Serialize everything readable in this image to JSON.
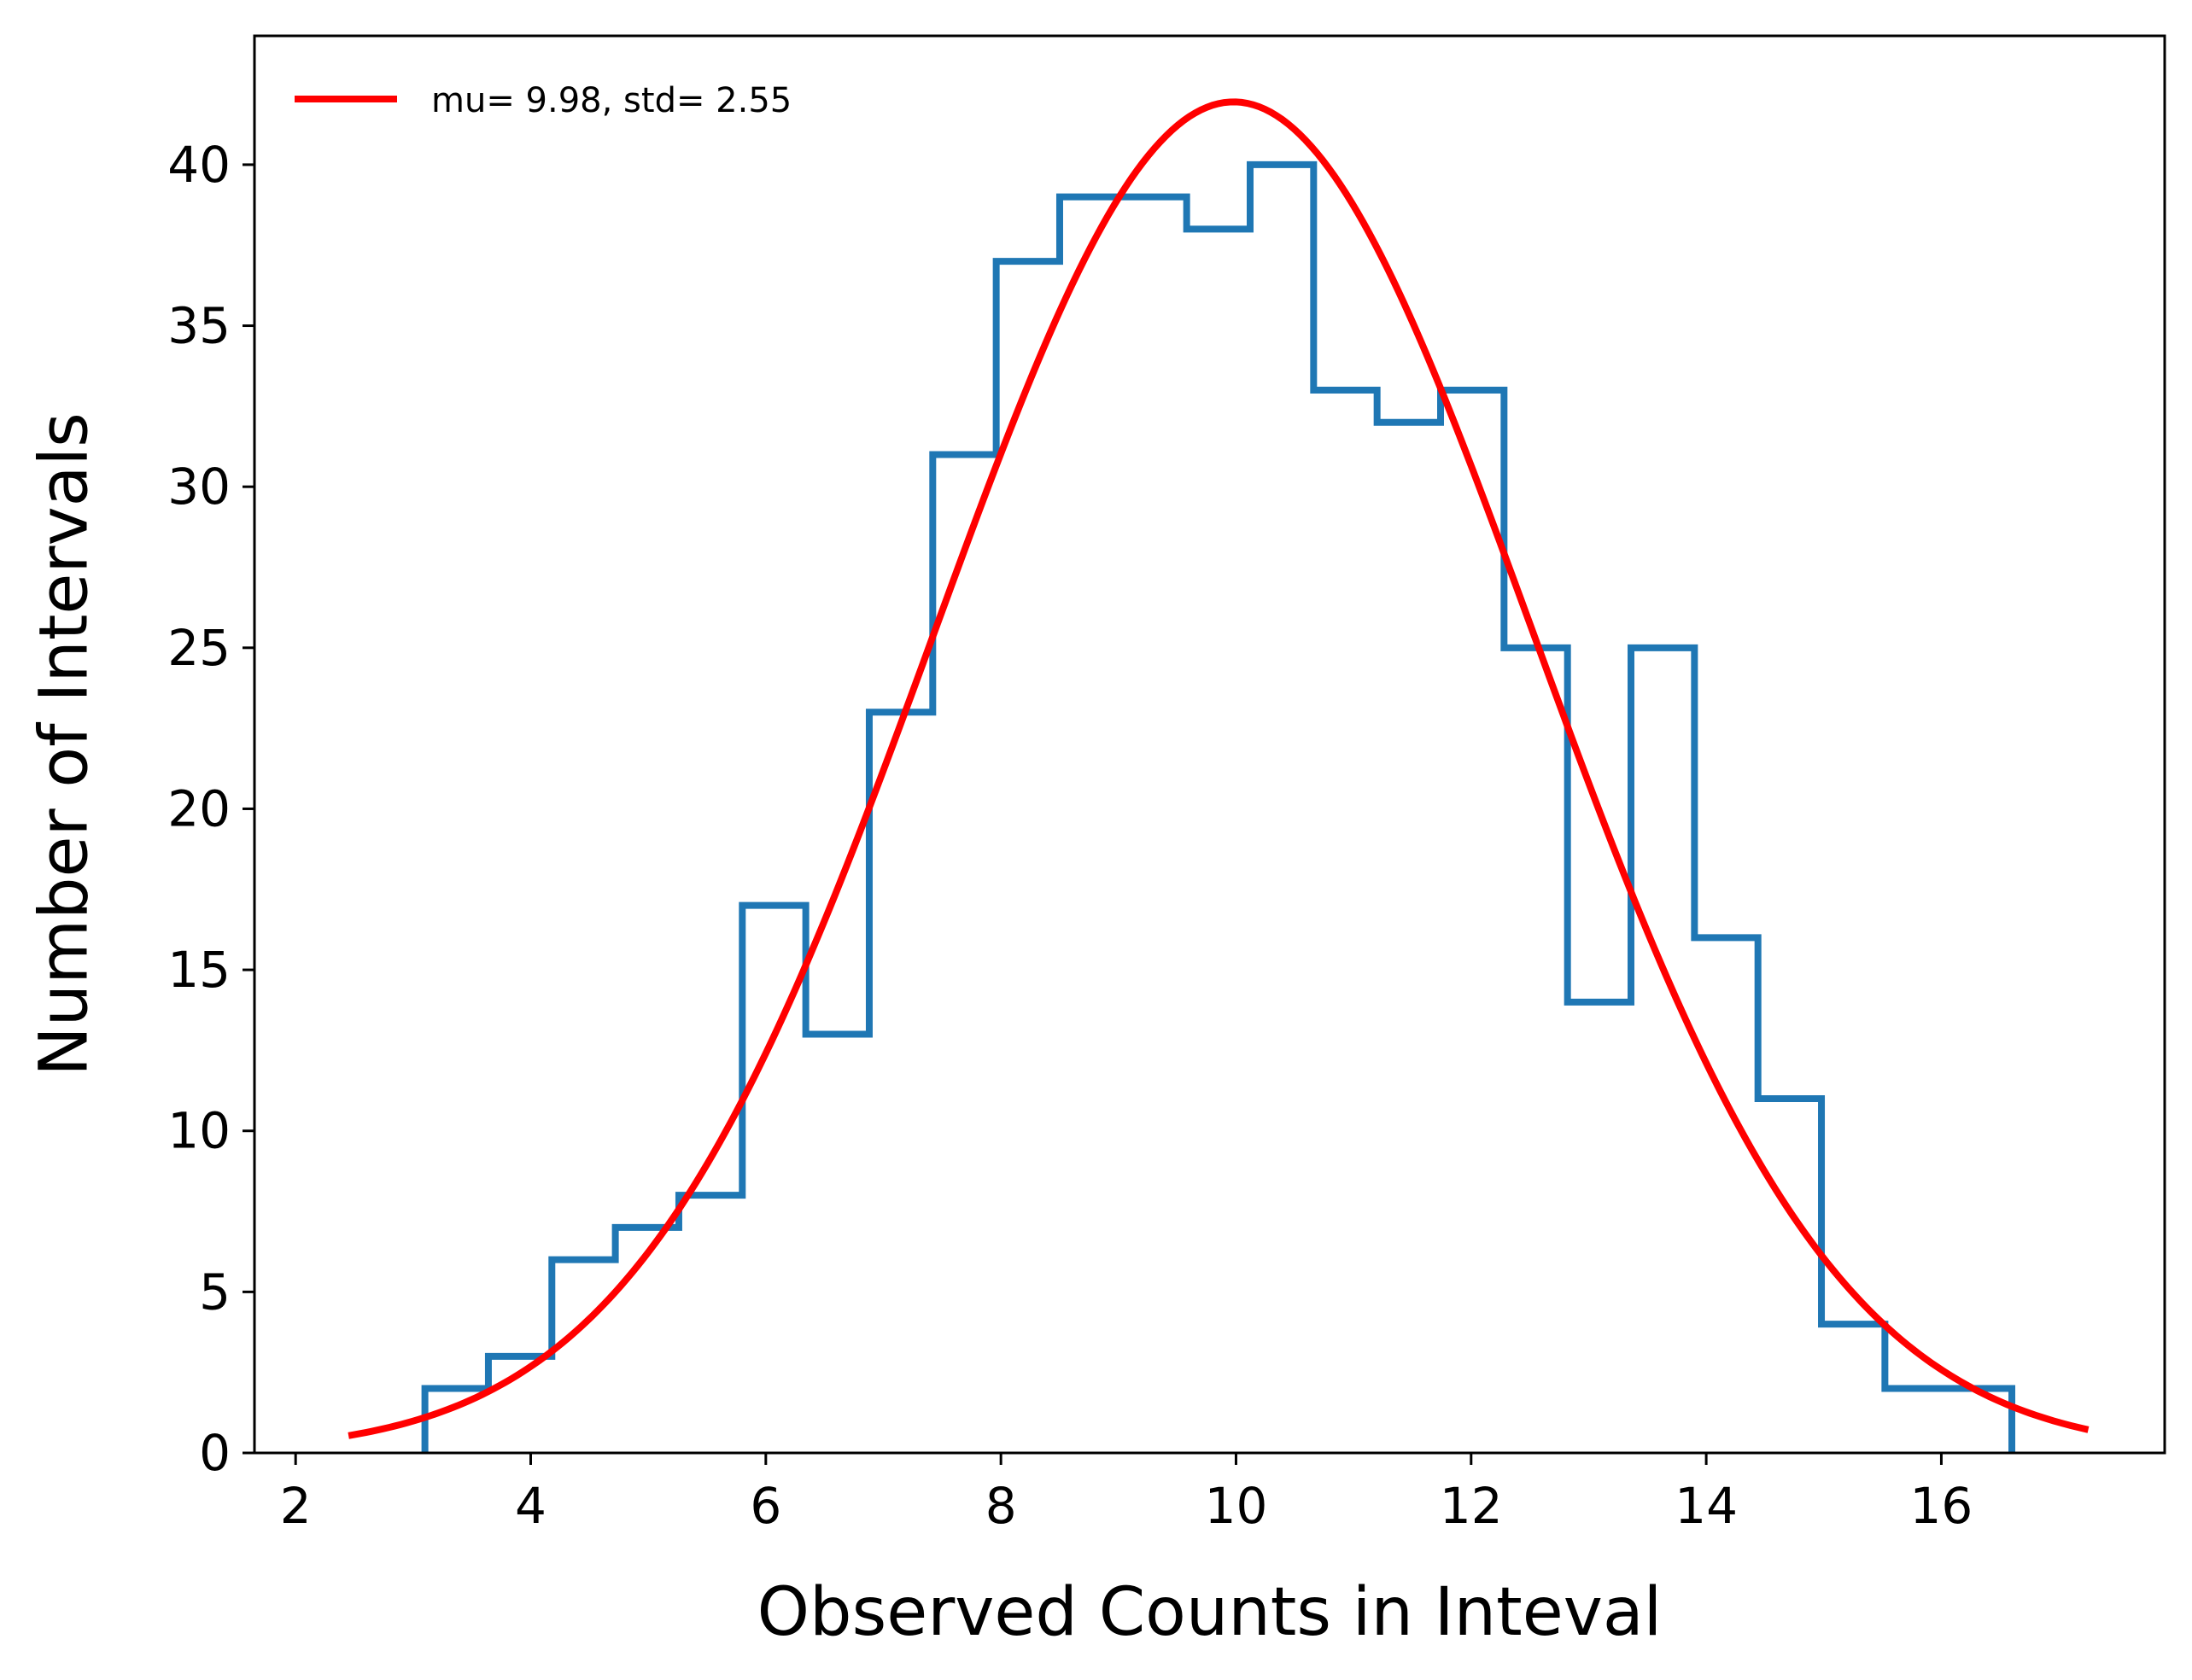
{
  "chart_data": {
    "type": "histogram",
    "xlabel": "Observed Counts in Inteval",
    "ylabel": "Number of Intervals",
    "xlim": [
      1.65,
      17.9
    ],
    "ylim": [
      0,
      44
    ],
    "x_ticks": [
      2,
      4,
      6,
      8,
      10,
      12,
      14,
      16
    ],
    "y_ticks": [
      0,
      5,
      10,
      15,
      20,
      25,
      30,
      35,
      40
    ],
    "grid": false,
    "legend_placement": "top-left",
    "histogram": {
      "color": "#1f77b4",
      "bin_edges": [
        3.1,
        3.64,
        4.18,
        4.72,
        5.26,
        5.8,
        6.34,
        6.88,
        7.42,
        7.96,
        8.5,
        9.04,
        9.58,
        10.12,
        10.66,
        11.2,
        11.74,
        12.28,
        12.82,
        13.36,
        13.9,
        14.44,
        14.98,
        15.52,
        16.06,
        16.6
      ],
      "counts": [
        2,
        3,
        6,
        7,
        8,
        17,
        13,
        23,
        31,
        37,
        39,
        39,
        38,
        40,
        33,
        32,
        33,
        25,
        14,
        25,
        16,
        11,
        4,
        2,
        2
      ]
    },
    "fit": {
      "name": "mu= 9.98, std= 2.55",
      "mu": 9.98,
      "std": 2.55,
      "peak": 41.95,
      "x_range": [
        2.45,
        17.25
      ],
      "color": "#ff0000"
    }
  }
}
